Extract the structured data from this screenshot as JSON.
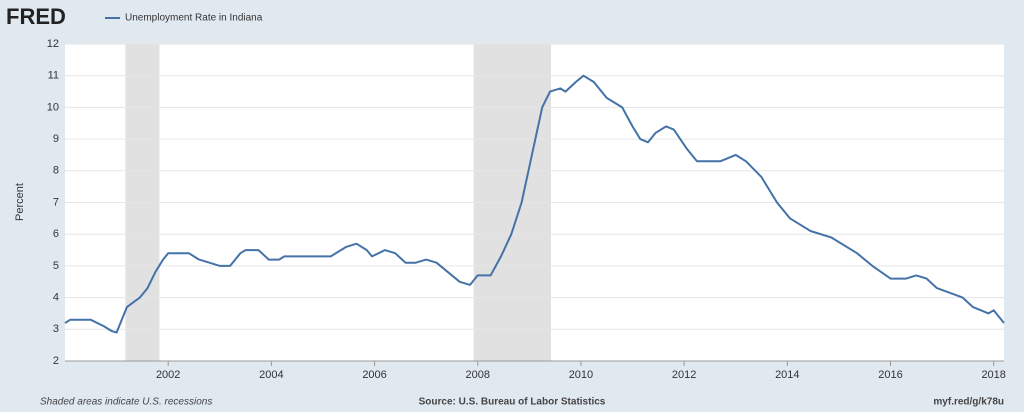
{
  "chart_data": {
    "type": "line",
    "logo": "FRED",
    "y_label": "Percent",
    "footer_left": "Shaded areas indicate U.S. recessions",
    "footer_center": "Source: U.S. Bureau of Labor Statistics",
    "footer_right": "myf.red/g/k78u",
    "x": [
      2000.0,
      2000.1,
      2000.5,
      2000.75,
      2000.9,
      2001.0,
      2001.2,
      2001.45,
      2001.6,
      2001.75,
      2001.9,
      2002.0,
      2002.4,
      2002.6,
      2002.8,
      2003.0,
      2003.2,
      2003.4,
      2003.5,
      2003.75,
      2003.95,
      2004.15,
      2004.25,
      2005.15,
      2005.45,
      2005.65,
      2005.85,
      2005.95,
      2006.2,
      2006.4,
      2006.6,
      2006.8,
      2007.0,
      2007.2,
      2007.65,
      2007.85,
      2008.0,
      2008.25,
      2008.45,
      2008.65,
      2008.85,
      2009.05,
      2009.25,
      2009.4,
      2009.6,
      2009.7,
      2009.9,
      2010.05,
      2010.25,
      2010.5,
      2010.8,
      2011.0,
      2011.15,
      2011.3,
      2011.45,
      2011.65,
      2011.8,
      2012.05,
      2012.25,
      2012.7,
      2013.0,
      2013.2,
      2013.5,
      2013.8,
      2014.05,
      2014.25,
      2014.45,
      2014.85,
      2015.35,
      2015.65,
      2016.0,
      2016.3,
      2016.5,
      2016.7,
      2016.9,
      2017.4,
      2017.6,
      2017.9,
      2018.0,
      2018.1,
      2018.2
    ],
    "series": [
      {
        "name": "Unemployment Rate in Indiana",
        "color": "#4572a7",
        "values": [
          3.2,
          3.3,
          3.3,
          3.1,
          2.95,
          2.9,
          3.7,
          4.0,
          4.3,
          4.8,
          5.2,
          5.4,
          5.4,
          5.2,
          5.1,
          5.0,
          5.0,
          5.4,
          5.5,
          5.5,
          5.2,
          5.2,
          5.3,
          5.3,
          5.6,
          5.7,
          5.5,
          5.3,
          5.5,
          5.4,
          5.1,
          5.1,
          5.2,
          5.1,
          4.5,
          4.4,
          4.7,
          4.7,
          5.3,
          6.0,
          7.0,
          8.5,
          10.0,
          10.5,
          10.6,
          10.5,
          10.8,
          11.0,
          10.8,
          10.3,
          10.0,
          9.4,
          9.0,
          8.9,
          9.2,
          9.4,
          9.3,
          8.7,
          8.3,
          8.3,
          8.5,
          8.3,
          7.8,
          7.0,
          6.5,
          6.3,
          6.1,
          5.9,
          5.4,
          5.0,
          4.6,
          4.6,
          4.7,
          4.6,
          4.3,
          4.0,
          3.7,
          3.5,
          3.6,
          3.4,
          3.2
        ]
      }
    ],
    "recessions": [
      [
        2001.17,
        2001.83
      ],
      [
        2007.92,
        2009.42
      ]
    ],
    "xlim": [
      2000.0,
      2018.2
    ],
    "xticks": [
      2002,
      2004,
      2006,
      2008,
      2010,
      2012,
      2014,
      2016,
      2018
    ],
    "ylim": [
      2,
      12
    ],
    "yticks": [
      2,
      3,
      4,
      5,
      6,
      7,
      8,
      9,
      10,
      11,
      12
    ],
    "grid": true
  }
}
